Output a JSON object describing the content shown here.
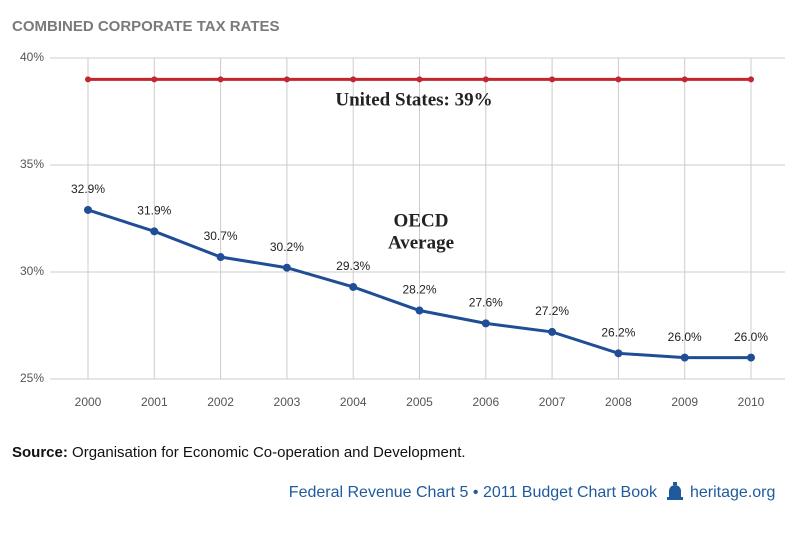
{
  "chart_data": {
    "type": "line",
    "title": "COMBINED CORPORATE TAX RATES",
    "categories": [
      "2000",
      "2001",
      "2002",
      "2003",
      "2004",
      "2005",
      "2006",
      "2007",
      "2008",
      "2009",
      "2010"
    ],
    "series": [
      {
        "color": "#c1272d",
        "values": [
          39,
          39,
          39,
          39,
          39,
          39,
          39,
          39,
          39,
          39,
          39
        ]
      },
      {
        "color": "#1f4e96",
        "values": [
          32.9,
          31.9,
          30.7,
          30.2,
          29.3,
          28.2,
          27.6,
          27.2,
          26.2,
          26.0,
          26.0
        ],
        "value_labels": [
          "32.9%",
          "31.9%",
          "30.7%",
          "30.2%",
          "29.3%",
          "28.2%",
          "27.6%",
          "27.2%",
          "26.2%",
          "26.0%",
          "26.0%"
        ]
      }
    ],
    "ylim": [
      25,
      40
    ],
    "yticks": [
      {
        "value": 25,
        "label": "25%"
      },
      {
        "value": 30,
        "label": "30%"
      },
      {
        "value": 35,
        "label": "35%"
      },
      {
        "value": 40,
        "label": "40%"
      }
    ],
    "grid": true,
    "annotations": [
      {
        "text": "United States: 39%"
      },
      {
        "lines": [
          "OECD",
          "Average"
        ]
      }
    ]
  },
  "source": {
    "label": "Source:",
    "text": "Organisation for Economic Co-operation and Development."
  },
  "footer": {
    "text": "Federal Revenue Chart 5 • 2011 Budget Chart Book",
    "site": "heritage.org"
  }
}
